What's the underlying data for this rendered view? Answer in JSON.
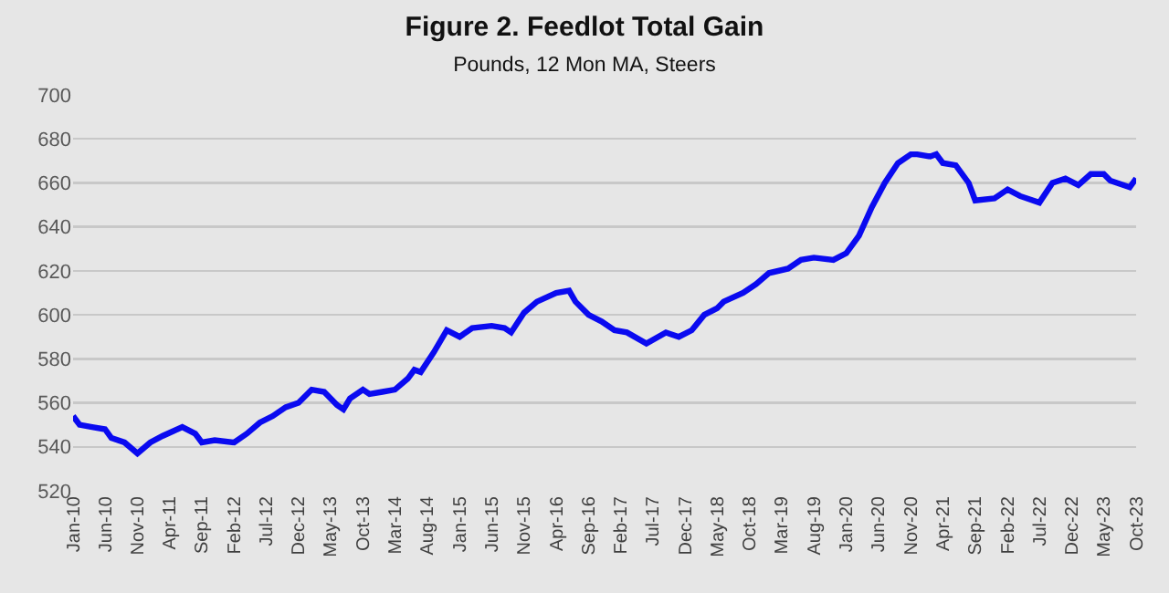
{
  "chart_data": {
    "type": "line",
    "title": "Figure 2. Feedlot Total Gain",
    "subtitle": "Pounds, 12 Mon MA, Steers",
    "x": [
      "2010-01",
      "2010-02",
      "2010-04",
      "2010-06",
      "2010-07",
      "2010-09",
      "2010-11",
      "2011-01",
      "2011-03",
      "2011-06",
      "2011-08",
      "2011-09",
      "2011-11",
      "2012-02",
      "2012-04",
      "2012-06",
      "2012-08",
      "2012-10",
      "2012-12",
      "2013-02",
      "2013-04",
      "2013-06",
      "2013-07",
      "2013-08",
      "2013-10",
      "2013-11",
      "2014-01",
      "2014-03",
      "2014-05",
      "2014-06",
      "2014-07",
      "2014-09",
      "2014-11",
      "2015-01",
      "2015-03",
      "2015-06",
      "2015-08",
      "2015-09",
      "2015-11",
      "2016-01",
      "2016-04",
      "2016-06",
      "2016-07",
      "2016-09",
      "2016-11",
      "2017-01",
      "2017-03",
      "2017-06",
      "2017-09",
      "2017-11",
      "2018-01",
      "2018-03",
      "2018-05",
      "2018-06",
      "2018-09",
      "2018-11",
      "2019-01",
      "2019-04",
      "2019-06",
      "2019-08",
      "2019-11",
      "2020-01",
      "2020-03",
      "2020-05",
      "2020-07",
      "2020-09",
      "2020-11",
      "2020-12",
      "2021-02",
      "2021-03",
      "2021-04",
      "2021-06",
      "2021-08",
      "2021-09",
      "2021-12",
      "2022-02",
      "2022-04",
      "2022-07",
      "2022-09",
      "2022-11",
      "2023-01",
      "2023-03",
      "2023-05",
      "2023-06",
      "2023-09",
      "2023-10"
    ],
    "series": [
      {
        "color": "#0a0af0",
        "values": [
          554,
          550,
          549,
          548,
          544,
          542,
          537,
          542,
          545,
          549,
          546,
          542,
          543,
          542,
          546,
          551,
          554,
          558,
          560,
          566,
          565,
          559,
          557,
          562,
          566,
          564,
          565,
          566,
          571,
          575,
          574,
          583,
          593,
          590,
          594,
          595,
          594,
          592,
          601,
          606,
          610,
          611,
          606,
          600,
          597,
          593,
          592,
          587,
          592,
          590,
          593,
          600,
          603,
          606,
          610,
          614,
          619,
          621,
          625,
          626,
          625,
          628,
          636,
          649,
          660,
          669,
          673,
          673,
          672,
          673,
          669,
          668,
          660,
          652,
          653,
          657,
          654,
          651,
          660,
          662,
          659,
          664,
          664,
          661,
          658,
          662
        ]
      }
    ],
    "xlim": [
      "2010-01",
      "2023-10"
    ],
    "xticks": [
      {
        "value": "2010-01",
        "label": "Jan-10"
      },
      {
        "value": "2010-06",
        "label": "Jun-10"
      },
      {
        "value": "2010-11",
        "label": "Nov-10"
      },
      {
        "value": "2011-04",
        "label": "Apr-11"
      },
      {
        "value": "2011-09",
        "label": "Sep-11"
      },
      {
        "value": "2012-02",
        "label": "Feb-12"
      },
      {
        "value": "2012-07",
        "label": "Jul-12"
      },
      {
        "value": "2012-12",
        "label": "Dec-12"
      },
      {
        "value": "2013-05",
        "label": "May-13"
      },
      {
        "value": "2013-10",
        "label": "Oct-13"
      },
      {
        "value": "2014-03",
        "label": "Mar-14"
      },
      {
        "value": "2014-08",
        "label": "Aug-14"
      },
      {
        "value": "2015-01",
        "label": "Jan-15"
      },
      {
        "value": "2015-06",
        "label": "Jun-15"
      },
      {
        "value": "2015-11",
        "label": "Nov-15"
      },
      {
        "value": "2016-04",
        "label": "Apr-16"
      },
      {
        "value": "2016-09",
        "label": "Sep-16"
      },
      {
        "value": "2017-02",
        "label": "Feb-17"
      },
      {
        "value": "2017-07",
        "label": "Jul-17"
      },
      {
        "value": "2017-12",
        "label": "Dec-17"
      },
      {
        "value": "2018-05",
        "label": "May-18"
      },
      {
        "value": "2018-10",
        "label": "Oct-18"
      },
      {
        "value": "2019-03",
        "label": "Mar-19"
      },
      {
        "value": "2019-08",
        "label": "Aug-19"
      },
      {
        "value": "2020-01",
        "label": "Jan-20"
      },
      {
        "value": "2020-06",
        "label": "Jun-20"
      },
      {
        "value": "2020-11",
        "label": "Nov-20"
      },
      {
        "value": "2021-04",
        "label": "Apr-21"
      },
      {
        "value": "2021-09",
        "label": "Sep-21"
      },
      {
        "value": "2022-02",
        "label": "Feb-22"
      },
      {
        "value": "2022-07",
        "label": "Jul-22"
      },
      {
        "value": "2022-12",
        "label": "Dec-22"
      },
      {
        "value": "2023-05",
        "label": "May-23"
      },
      {
        "value": "2023-10",
        "label": "Oct-23"
      }
    ],
    "ylim": [
      520,
      700
    ],
    "yticks": [
      520,
      540,
      560,
      580,
      600,
      620,
      640,
      660,
      680,
      700
    ],
    "grid": "y",
    "marker": "none",
    "line_style": "solid"
  }
}
